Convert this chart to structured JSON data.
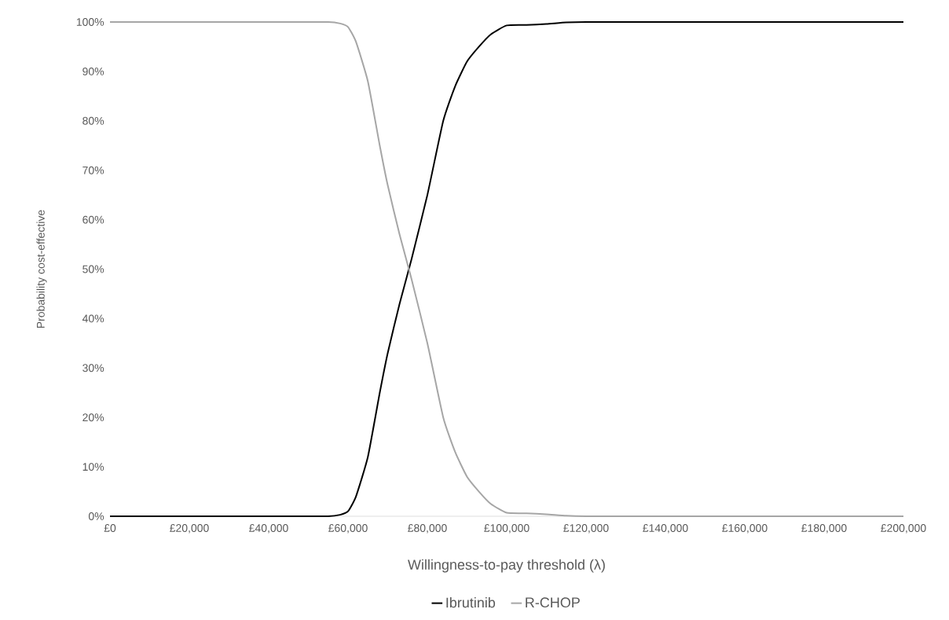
{
  "chart_data": {
    "type": "line",
    "xlabel": "Willingness-to-pay threshold (λ)",
    "ylabel": "Probability cost-effective",
    "x": [
      0,
      20000,
      40000,
      55000,
      58000,
      60000,
      62000,
      65000,
      68000,
      70000,
      73000,
      76000,
      80000,
      84000,
      87000,
      90000,
      93000,
      96000,
      100000,
      105000,
      110000,
      115000,
      120000,
      140000,
      160000,
      180000,
      200000
    ],
    "series": [
      {
        "name": "Ibrutinib",
        "color": "#000000",
        "values": [
          0,
          0,
          0,
          0,
          0.3,
          1,
          4,
          12,
          25,
          33,
          43,
          52,
          65,
          80,
          87,
          92,
          95,
          97.5,
          99.3,
          99.4,
          99.6,
          99.9,
          100,
          100,
          100,
          100,
          100
        ]
      },
      {
        "name": "R-CHOP",
        "color": "#a6a6a6",
        "values": [
          100,
          100,
          100,
          100,
          99.7,
          99,
          96,
          88,
          75,
          67,
          57,
          48,
          35,
          20,
          13,
          8,
          5,
          2.5,
          0.7,
          0.6,
          0.4,
          0.1,
          0,
          0,
          0,
          0,
          0
        ]
      }
    ],
    "xlim": [
      0,
      200000
    ],
    "ylim": [
      0,
      100
    ],
    "xticks": [
      {
        "value": 0,
        "label": "£0"
      },
      {
        "value": 20000,
        "label": "£20,000"
      },
      {
        "value": 40000,
        "label": "£40,000"
      },
      {
        "value": 60000,
        "label": "£60,000"
      },
      {
        "value": 80000,
        "label": "£80,000"
      },
      {
        "value": 100000,
        "label": "£100,000"
      },
      {
        "value": 120000,
        "label": "£120,000"
      },
      {
        "value": 140000,
        "label": "£140,000"
      },
      {
        "value": 160000,
        "label": "£160,000"
      },
      {
        "value": 180000,
        "label": "£180,000"
      },
      {
        "value": 200000,
        "label": "£200,000"
      }
    ],
    "yticks": [
      {
        "value": 0,
        "label": "0%"
      },
      {
        "value": 10,
        "label": "10%"
      },
      {
        "value": 20,
        "label": "20%"
      },
      {
        "value": 30,
        "label": "30%"
      },
      {
        "value": 40,
        "label": "40%"
      },
      {
        "value": 50,
        "label": "50%"
      },
      {
        "value": 60,
        "label": "60%"
      },
      {
        "value": 70,
        "label": "70%"
      },
      {
        "value": 80,
        "label": "80%"
      },
      {
        "value": 90,
        "label": "90%"
      },
      {
        "value": 100,
        "label": "100%"
      }
    ],
    "legend": "bottom",
    "marker": "none",
    "line_style": "solid"
  }
}
